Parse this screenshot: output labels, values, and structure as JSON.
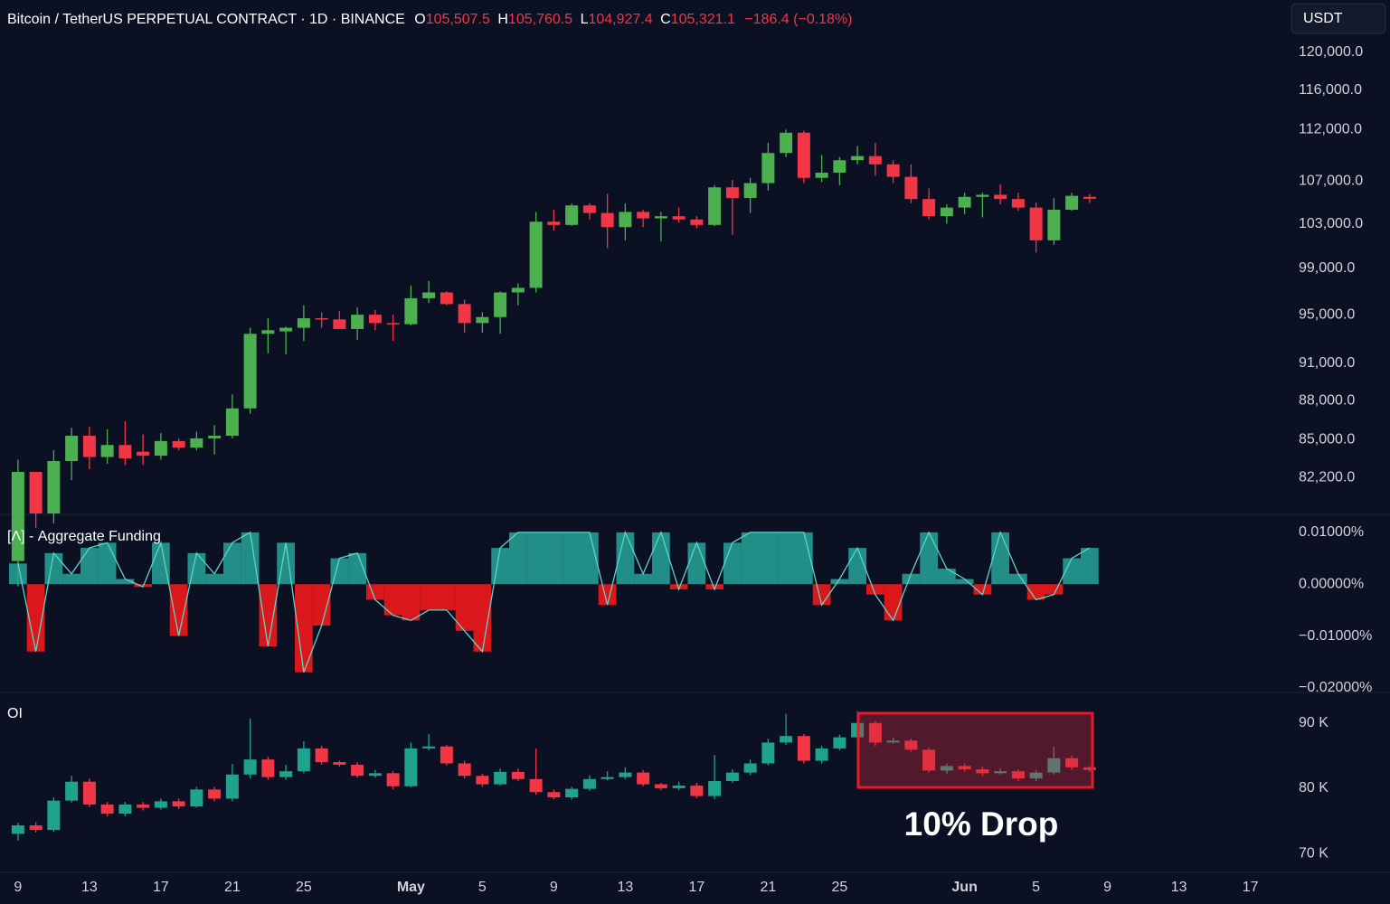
{
  "chart_data": [
    {
      "type": "candlestick",
      "title": "Bitcoin / TetherUS PERPETUAL CONTRACT · 1D · BINANCE",
      "header_keys": [
        "O",
        "H",
        "L",
        "C"
      ],
      "value_labels": {
        "open": "105,507.5",
        "high": "105,760.5",
        "low": "104,927.4",
        "close": "105,321.1"
      },
      "change_label": "−186.4 (−0.18%)",
      "currency": "USDT",
      "log_scale": true,
      "grid": false,
      "up_color": "#4caf50",
      "down_color": "#f23645",
      "ylim": [
        79600,
        125700
      ],
      "yticks": [
        {
          "value": 120000,
          "label": "120,000.0"
        },
        {
          "value": 116000,
          "label": "116,000.0"
        },
        {
          "value": 112000,
          "label": "112,000.0"
        },
        {
          "value": 107000,
          "label": "107,000.0"
        },
        {
          "value": 103000,
          "label": "103,000.0"
        },
        {
          "value": 99000,
          "label": "99,000.0"
        },
        {
          "value": 95000,
          "label": "95,000.0"
        },
        {
          "value": 91000,
          "label": "91,000.0"
        },
        {
          "value": 88000,
          "label": "88,000.0"
        },
        {
          "value": 85000,
          "label": "85,000.0"
        },
        {
          "value": 82200,
          "label": "82,200.0"
        }
      ],
      "open": [
        76300,
        82600,
        79600,
        83400,
        85300,
        83700,
        84600,
        84100,
        83800,
        84900,
        84400,
        85100,
        85300,
        87400,
        93400,
        93600,
        93900,
        94700,
        94600,
        93800,
        95000,
        94300,
        94200,
        96400,
        96900,
        95900,
        94300,
        94800,
        96900,
        97300,
        103200,
        102900,
        104700,
        104000,
        102700,
        104100,
        103500,
        103700,
        103400,
        102900,
        106400,
        105400,
        106800,
        109700,
        111700,
        107300,
        107800,
        109000,
        109400,
        108600,
        107400,
        105300,
        103700,
        104500,
        105500,
        105700,
        105300,
        104500,
        101500,
        104300,
        105507.5,
        null,
        null,
        null,
        null,
        null,
        null,
        null,
        null,
        null
      ],
      "high": [
        83500,
        82600,
        84200,
        85900,
        86000,
        85800,
        86400,
        85400,
        85500,
        85100,
        85600,
        86100,
        88500,
        93900,
        94700,
        94000,
        95800,
        95200,
        95300,
        95600,
        95400,
        95000,
        97500,
        97900,
        97000,
        96300,
        95200,
        97000,
        97700,
        104100,
        104300,
        104900,
        104900,
        105800,
        104900,
        104300,
        104100,
        104500,
        103700,
        106600,
        107100,
        107300,
        110700,
        112000,
        111900,
        109500,
        109300,
        110400,
        110700,
        109000,
        108600,
        106300,
        104800,
        105900,
        105900,
        106700,
        105900,
        105000,
        105400,
        105900,
        105760.5,
        null,
        null,
        null,
        null,
        null,
        null,
        null,
        null,
        null
      ],
      "low": [
        74600,
        78600,
        78900,
        82000,
        82800,
        83200,
        83100,
        83100,
        83500,
        84200,
        84200,
        83900,
        85100,
        87000,
        91800,
        91700,
        92800,
        93900,
        93800,
        92900,
        93700,
        92800,
        94100,
        96000,
        95800,
        93500,
        93500,
        93400,
        95800,
        96900,
        102400,
        102800,
        103400,
        100800,
        101500,
        102700,
        101400,
        103100,
        102600,
        102800,
        102000,
        104000,
        106100,
        109300,
        106800,
        106900,
        106600,
        108600,
        107500,
        106800,
        104900,
        103400,
        103000,
        103900,
        103600,
        104800,
        104200,
        100400,
        101100,
        104200,
        104927.4,
        null,
        null,
        null,
        null,
        null,
        null,
        null,
        null,
        null
      ],
      "close": [
        82600,
        79600,
        83400,
        85300,
        83700,
        84600,
        83600,
        83800,
        84900,
        84400,
        85100,
        85300,
        87400,
        93400,
        93700,
        93900,
        94700,
        94600,
        93800,
        95000,
        94300,
        94200,
        96400,
        96900,
        95900,
        94300,
        94800,
        96900,
        97300,
        103200,
        102900,
        104700,
        104000,
        102700,
        104100,
        103500,
        103700,
        103400,
        102900,
        106400,
        105400,
        106800,
        109700,
        111700,
        107300,
        107800,
        109000,
        109400,
        108600,
        107400,
        105300,
        103700,
        104500,
        105500,
        105700,
        105300,
        104500,
        101500,
        104300,
        105600,
        105321.1,
        null,
        null,
        null,
        null,
        null,
        null,
        null,
        null,
        null
      ]
    },
    {
      "type": "bar",
      "title": "[Λ] - Aggregate Funding",
      "grid": false,
      "pos_color": "#26a69a",
      "neg_color": "#ff1a1a",
      "line_color": "#5fd3c6",
      "ylim": [
        -0.0209,
        0.0133
      ],
      "yticks": [
        {
          "value": 0.01,
          "label": "0.01000%"
        },
        {
          "value": 0,
          "label": "0.00000%"
        },
        {
          "value": -0.01,
          "label": "−0.01000%"
        },
        {
          "value": -0.02,
          "label": "−0.02000%"
        }
      ],
      "values": [
        0.004,
        -0.013,
        0.006,
        0.002,
        0.007,
        0.008,
        0.001,
        -0.0005,
        0.008,
        -0.01,
        0.006,
        0.002,
        0.008,
        0.01,
        -0.012,
        0.008,
        -0.017,
        -0.008,
        0.005,
        0.006,
        -0.003,
        -0.006,
        -0.007,
        -0.005,
        -0.005,
        -0.009,
        -0.013,
        0.007,
        0.01,
        0.01,
        0.01,
        0.01,
        0.01,
        -0.004,
        0.01,
        0.002,
        0.01,
        -0.001,
        0.008,
        -0.001,
        0.008,
        0.01,
        0.01,
        0.01,
        0.01,
        -0.004,
        0.001,
        0.007,
        -0.002,
        -0.007,
        0.002,
        0.01,
        0.003,
        0.001,
        -0.002,
        0.01,
        0.002,
        -0.003,
        -0.002,
        0.005,
        0.007,
        null,
        null,
        null,
        null,
        null,
        null,
        null,
        null,
        null
      ]
    },
    {
      "type": "candlestick",
      "title": "OI",
      "annotation": "10% Drop",
      "log_scale": false,
      "grid": false,
      "up_color": "#1fa38a",
      "down_color": "#f23645",
      "ylim": [
        67.1,
        94.4
      ],
      "yticks": [
        {
          "value": 90,
          "label": "90 K"
        },
        {
          "value": 80,
          "label": "80 K"
        },
        {
          "value": 70,
          "label": "70 K"
        }
      ],
      "categories": [
        "9",
        null,
        null,
        null,
        "13",
        null,
        null,
        null,
        "17",
        null,
        null,
        null,
        "21",
        null,
        null,
        null,
        "25",
        null,
        null,
        null,
        null,
        null,
        "May",
        null,
        null,
        null,
        "5",
        null,
        null,
        null,
        "9",
        null,
        null,
        null,
        "13",
        null,
        null,
        null,
        "17",
        null,
        null,
        null,
        "21",
        null,
        null,
        null,
        "25",
        null,
        null,
        null,
        null,
        null,
        null,
        "Jun",
        null,
        null,
        null,
        "5",
        null,
        null,
        null,
        "9",
        null,
        null,
        null,
        "13",
        null,
        null,
        null,
        "17"
      ],
      "open": [
        73.0,
        74.3,
        73.6,
        78.1,
        81.0,
        77.5,
        76.1,
        77.5,
        77.0,
        78.0,
        77.2,
        79.8,
        78.4,
        82.1,
        84.4,
        81.7,
        82.6,
        86.1,
        84.0,
        83.6,
        81.9,
        82.3,
        80.3,
        86.1,
        86.4,
        83.8,
        81.9,
        80.6,
        82.5,
        81.4,
        79.4,
        78.6,
        79.9,
        81.4,
        81.7,
        82.4,
        80.6,
        80.0,
        80.4,
        78.8,
        81.1,
        82.4,
        83.8,
        87.0,
        88.0,
        84.2,
        86.1,
        87.8,
        90.0,
        87.0,
        87.3,
        85.9,
        82.7,
        83.4,
        82.9,
        82.3,
        82.6,
        81.5,
        82.4,
        84.6,
        83.2,
        null,
        null,
        null,
        null,
        null,
        null,
        null,
        null,
        null
      ],
      "high": [
        74.7,
        74.8,
        78.6,
        81.9,
        81.5,
        77.9,
        77.9,
        77.9,
        78.4,
        78.4,
        80.2,
        80.2,
        83.7,
        90.7,
        84.8,
        83.6,
        87.2,
        86.5,
        84.2,
        84.0,
        82.8,
        82.6,
        87.0,
        88.3,
        86.6,
        84.2,
        82.2,
        83.0,
        83.0,
        86.1,
        79.8,
        80.2,
        82.0,
        82.6,
        83.2,
        82.8,
        80.8,
        81.0,
        80.8,
        85.1,
        82.9,
        84.4,
        87.6,
        91.4,
        88.3,
        86.5,
        88.2,
        91.8,
        90.3,
        87.8,
        87.6,
        86.2,
        83.8,
        83.8,
        83.3,
        83.0,
        82.9,
        82.8,
        86.4,
        85.0,
        83.4,
        null,
        null,
        null,
        null,
        null,
        null,
        null,
        null,
        null
      ],
      "low": [
        72.0,
        73.2,
        73.3,
        77.8,
        77.1,
        75.7,
        75.7,
        76.6,
        76.7,
        76.8,
        77.0,
        78.0,
        78.0,
        81.5,
        81.3,
        81.3,
        82.3,
        83.6,
        83.3,
        81.6,
        81.6,
        79.8,
        80.1,
        85.8,
        83.5,
        81.5,
        80.2,
        80.4,
        81.1,
        79.0,
        78.3,
        78.3,
        79.6,
        81.2,
        81.4,
        80.3,
        79.7,
        79.7,
        78.5,
        78.3,
        80.8,
        82.0,
        83.5,
        86.6,
        83.8,
        83.8,
        85.8,
        87.5,
        86.5,
        86.8,
        85.6,
        82.4,
        82.2,
        82.5,
        81.9,
        82.1,
        81.1,
        81.1,
        82.1,
        82.8,
        82.5,
        null,
        null,
        null,
        null,
        null,
        null,
        null,
        null,
        null
      ],
      "close": [
        74.3,
        73.6,
        78.1,
        81.0,
        77.5,
        76.1,
        77.5,
        77.0,
        78.0,
        77.2,
        79.8,
        78.4,
        82.1,
        84.4,
        81.7,
        82.6,
        86.1,
        84.0,
        83.6,
        81.9,
        82.3,
        80.3,
        86.1,
        86.4,
        83.8,
        81.9,
        80.6,
        82.5,
        81.4,
        79.4,
        78.6,
        79.9,
        81.4,
        81.7,
        82.4,
        80.6,
        80.0,
        80.4,
        78.8,
        81.1,
        82.4,
        83.8,
        87.0,
        88.0,
        84.2,
        86.1,
        87.8,
        90.0,
        87.0,
        87.3,
        85.9,
        82.7,
        83.4,
        82.9,
        82.3,
        82.6,
        81.5,
        82.4,
        84.6,
        83.2,
        82.8,
        null,
        null,
        null,
        null,
        null,
        null,
        null,
        null,
        null
      ]
    }
  ]
}
